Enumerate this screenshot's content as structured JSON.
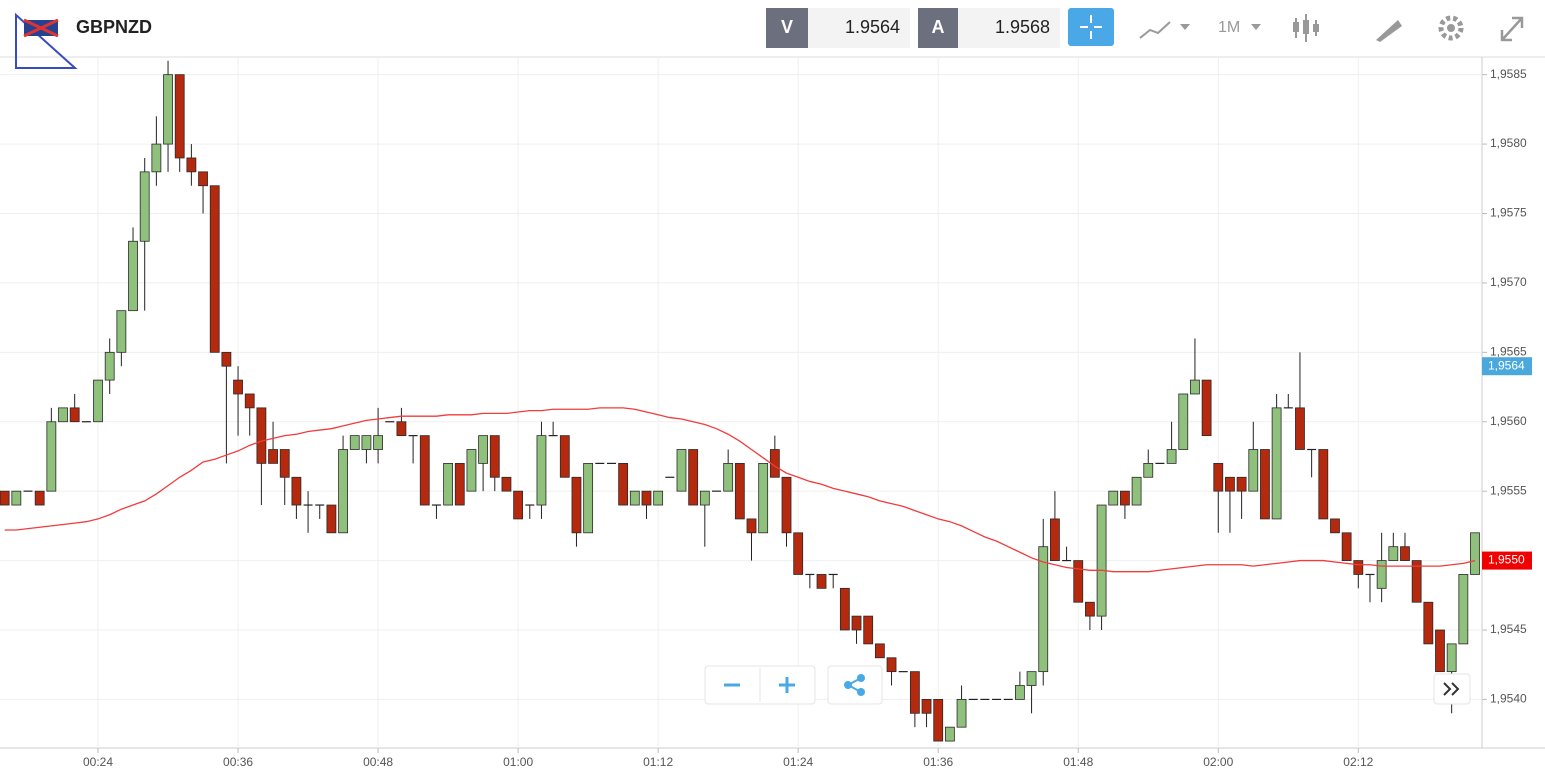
{
  "header": {
    "symbol": "GBPNZD",
    "bid_label": "V",
    "bid": "1.9564",
    "ask_label": "A",
    "ask": "1.9568",
    "timeframe": "1M"
  },
  "chart_data": {
    "type": "candlestick",
    "up_color": "#8fc17d",
    "down_color": "#b5290e",
    "wick_color": "#222222",
    "grid": true,
    "xlim": [
      15.6,
      142.6
    ],
    "ylim": [
      1.95365,
      1.95862
    ],
    "xticks": [
      {
        "value": 24,
        "label": "00:24"
      },
      {
        "value": 36,
        "label": "00:36"
      },
      {
        "value": 48,
        "label": "00:48"
      },
      {
        "value": 60,
        "label": "01:00"
      },
      {
        "value": 72,
        "label": "01:12"
      },
      {
        "value": 84,
        "label": "01:24"
      },
      {
        "value": 96,
        "label": "01:36"
      },
      {
        "value": 108,
        "label": "01:48"
      },
      {
        "value": 120,
        "label": "02:00"
      },
      {
        "value": 132,
        "label": "02:12"
      }
    ],
    "yticks": [
      {
        "value": 1.954,
        "label": "1,9540"
      },
      {
        "value": 1.9545,
        "label": "1,9545"
      },
      {
        "value": 1.955,
        "label": "1,9550"
      },
      {
        "value": 1.9555,
        "label": "1,9555"
      },
      {
        "value": 1.956,
        "label": "1,9560"
      },
      {
        "value": 1.9565,
        "label": "1,9565"
      },
      {
        "value": 1.957,
        "label": "1,9570"
      },
      {
        "value": 1.9575,
        "label": "1,9575"
      },
      {
        "value": 1.958,
        "label": "1,9580"
      },
      {
        "value": 1.9585,
        "label": "1,9585"
      }
    ],
    "x": [
      16,
      17,
      18,
      19,
      20,
      21,
      22,
      23,
      24,
      25,
      26,
      27,
      28,
      29,
      30,
      31,
      32,
      33,
      34,
      35,
      36,
      37,
      38,
      39,
      40,
      41,
      42,
      43,
      44,
      45,
      46,
      47,
      48,
      49,
      50,
      51,
      52,
      53,
      54,
      55,
      56,
      57,
      58,
      59,
      60,
      61,
      62,
      63,
      64,
      65,
      66,
      67,
      68,
      69,
      70,
      71,
      72,
      73,
      74,
      75,
      76,
      77,
      78,
      79,
      80,
      81,
      82,
      83,
      84,
      85,
      86,
      87,
      88,
      89,
      90,
      91,
      92,
      93,
      94,
      95,
      96,
      97,
      98,
      99,
      100,
      101,
      102,
      103,
      104,
      105,
      106,
      107,
      108,
      109,
      110,
      111,
      112,
      113,
      114,
      115,
      116,
      117,
      118,
      119,
      120,
      121,
      122,
      123,
      124,
      125,
      126,
      127,
      128,
      129,
      130,
      131,
      132,
      133,
      134,
      135,
      136,
      137,
      138,
      139,
      140,
      141,
      142
    ],
    "open": [
      1.9555,
      1.9554,
      1.9555,
      1.9555,
      1.9555,
      1.956,
      1.9561,
      1.956,
      1.956,
      1.9563,
      1.9565,
      1.9568,
      1.9573,
      1.9578,
      1.958,
      1.9585,
      1.9579,
      1.9578,
      1.9577,
      1.9565,
      1.9563,
      1.9562,
      1.9561,
      1.9558,
      1.9558,
      1.9556,
      1.9554,
      1.9554,
      1.9554,
      1.9552,
      1.9558,
      1.9558,
      1.9558,
      1.956,
      1.956,
      1.9559,
      1.9559,
      1.9554,
      1.9554,
      1.9557,
      1.9555,
      1.9557,
      1.9559,
      1.9556,
      1.9555,
      1.9554,
      1.9554,
      1.9559,
      1.9559,
      1.9556,
      1.9552,
      1.9557,
      1.9557,
      1.9557,
      1.9554,
      1.9555,
      1.9554,
      1.9556,
      1.9555,
      1.9558,
      1.9554,
      1.9555,
      1.9555,
      1.9557,
      1.9553,
      1.9552,
      1.9558,
      1.9556,
      1.9552,
      1.9549,
      1.9549,
      1.9549,
      1.9548,
      1.9546,
      1.9546,
      1.9544,
      1.9543,
      1.9542,
      1.9542,
      1.954,
      1.954,
      1.9537,
      1.9538,
      1.954,
      1.954,
      1.954,
      1.954,
      1.954,
      1.9541,
      1.9542,
      1.9553,
      1.955,
      1.955,
      1.9547,
      1.9546,
      1.9554,
      1.9555,
      1.9554,
      1.9556,
      1.9557,
      1.9557,
      1.9558,
      1.9562,
      1.9563,
      1.9557,
      1.9556,
      1.9556,
      1.9555,
      1.9558,
      1.9553,
      1.9561,
      1.9561,
      1.9558,
      1.9558,
      1.9553,
      1.9552,
      1.955,
      1.9549,
      1.9548,
      1.955,
      1.9551,
      1.955,
      1.9547,
      1.9545,
      1.9542,
      1.9544,
      1.9549
    ],
    "high": [
      1.9555,
      1.9555,
      1.9555,
      1.9555,
      1.9561,
      1.9561,
      1.9562,
      1.956,
      1.9563,
      1.9566,
      1.9568,
      1.9574,
      1.9579,
      1.9582,
      1.9586,
      1.9585,
      1.958,
      1.9578,
      1.9577,
      1.9565,
      1.9564,
      1.9562,
      1.9561,
      1.956,
      1.9558,
      1.9556,
      1.9555,
      1.9554,
      1.9554,
      1.9559,
      1.9559,
      1.9559,
      1.9561,
      1.956,
      1.9561,
      1.9559,
      1.9559,
      1.9554,
      1.9557,
      1.9557,
      1.9558,
      1.9559,
      1.9559,
      1.9556,
      1.9555,
      1.9554,
      1.956,
      1.956,
      1.9559,
      1.9556,
      1.9557,
      1.9557,
      1.9557,
      1.9557,
      1.9555,
      1.9555,
      1.9555,
      1.9556,
      1.9558,
      1.9558,
      1.9555,
      1.9555,
      1.9558,
      1.9557,
      1.9553,
      1.9557,
      1.9559,
      1.9556,
      1.9552,
      1.9549,
      1.9549,
      1.9549,
      1.9548,
      1.9546,
      1.9546,
      1.9544,
      1.9543,
      1.9542,
      1.9542,
      1.954,
      1.954,
      1.9538,
      1.9541,
      1.954,
      1.954,
      1.954,
      1.954,
      1.9542,
      1.9542,
      1.9553,
      1.9555,
      1.9551,
      1.955,
      1.9547,
      1.9554,
      1.9555,
      1.9555,
      1.9556,
      1.9558,
      1.9557,
      1.956,
      1.9562,
      1.9566,
      1.9563,
      1.9557,
      1.9556,
      1.9556,
      1.956,
      1.9558,
      1.9562,
      1.9562,
      1.9565,
      1.9558,
      1.9558,
      1.9553,
      1.9552,
      1.955,
      1.9549,
      1.9552,
      1.9552,
      1.9552,
      1.955,
      1.9547,
      1.9545,
      1.9544,
      1.9549,
      1.9552
    ],
    "low": [
      1.9554,
      1.9554,
      1.9555,
      1.9554,
      1.9555,
      1.956,
      1.956,
      1.956,
      1.956,
      1.9562,
      1.9564,
      1.9568,
      1.9568,
      1.9577,
      1.9578,
      1.9578,
      1.9577,
      1.9575,
      1.9565,
      1.9557,
      1.9559,
      1.9559,
      1.9554,
      1.9557,
      1.9554,
      1.9553,
      1.9552,
      1.9553,
      1.9552,
      1.9552,
      1.9558,
      1.9557,
      1.9557,
      1.956,
      1.9559,
      1.9557,
      1.9554,
      1.9553,
      1.9554,
      1.9554,
      1.9555,
      1.9555,
      1.9555,
      1.9555,
      1.9553,
      1.9553,
      1.9553,
      1.9559,
      1.9556,
      1.9551,
      1.9552,
      1.9557,
      1.9557,
      1.9554,
      1.9554,
      1.9553,
      1.9554,
      1.9556,
      1.9555,
      1.9554,
      1.9551,
      1.9555,
      1.9555,
      1.9553,
      1.955,
      1.9552,
      1.9556,
      1.9551,
      1.9549,
      1.9548,
      1.9548,
      1.9548,
      1.9545,
      1.9544,
      1.9544,
      1.9543,
      1.9541,
      1.9542,
      1.9538,
      1.9538,
      1.9537,
      1.9537,
      1.9538,
      1.954,
      1.954,
      1.954,
      1.954,
      1.954,
      1.9539,
      1.9541,
      1.955,
      1.955,
      1.9547,
      1.9545,
      1.9545,
      1.9554,
      1.9553,
      1.9554,
      1.9556,
      1.9557,
      1.9557,
      1.9558,
      1.9562,
      1.9559,
      1.9552,
      1.9552,
      1.9553,
      1.9555,
      1.9553,
      1.9553,
      1.9561,
      1.9558,
      1.9556,
      1.9553,
      1.9552,
      1.955,
      1.9548,
      1.9547,
      1.9547,
      1.955,
      1.955,
      1.9547,
      1.9544,
      1.9542,
      1.9539,
      1.9544,
      1.9549
    ],
    "close": [
      1.9554,
      1.9555,
      1.9555,
      1.9554,
      1.956,
      1.9561,
      1.956,
      1.956,
      1.9563,
      1.9565,
      1.9568,
      1.9573,
      1.9578,
      1.958,
      1.9585,
      1.9579,
      1.9578,
      1.9577,
      1.9565,
      1.9564,
      1.9562,
      1.9561,
      1.9557,
      1.9557,
      1.9556,
      1.9554,
      1.9554,
      1.9554,
      1.9552,
      1.9558,
      1.9559,
      1.9559,
      1.9559,
      1.956,
      1.9559,
      1.9559,
      1.9554,
      1.9554,
      1.9557,
      1.9554,
      1.9558,
      1.9559,
      1.9556,
      1.9555,
      1.9553,
      1.9554,
      1.9559,
      1.9559,
      1.9556,
      1.9552,
      1.9557,
      1.9557,
      1.9557,
      1.9554,
      1.9555,
      1.9554,
      1.9555,
      1.9556,
      1.9558,
      1.9554,
      1.9555,
      1.9555,
      1.9557,
      1.9553,
      1.9552,
      1.9557,
      1.9556,
      1.9552,
      1.9549,
      1.9549,
      1.9548,
      1.9549,
      1.9545,
      1.9545,
      1.9544,
      1.9543,
      1.9542,
      1.9542,
      1.9539,
      1.9539,
      1.9537,
      1.9538,
      1.954,
      1.954,
      1.954,
      1.954,
      1.954,
      1.9541,
      1.9542,
      1.9551,
      1.955,
      1.955,
      1.9547,
      1.9546,
      1.9554,
      1.9555,
      1.9554,
      1.9556,
      1.9557,
      1.9557,
      1.9558,
      1.9562,
      1.9563,
      1.9559,
      1.9555,
      1.9555,
      1.9555,
      1.9558,
      1.9553,
      1.9561,
      1.9561,
      1.9558,
      1.9558,
      1.9553,
      1.9552,
      1.955,
      1.9549,
      1.9549,
      1.955,
      1.9551,
      1.955,
      1.9547,
      1.9544,
      1.9542,
      1.9544,
      1.9549,
      1.9552
    ],
    "ma": {
      "color": "#f03c3c",
      "values": [
        1.95522,
        1.95522,
        1.95523,
        1.95524,
        1.95525,
        1.95526,
        1.95527,
        1.95528,
        1.9553,
        1.95533,
        1.95537,
        1.9554,
        1.95543,
        1.95548,
        1.95554,
        1.9556,
        1.95565,
        1.95571,
        1.95573,
        1.95576,
        1.95579,
        1.95583,
        1.95586,
        1.95588,
        1.9559,
        1.95591,
        1.95593,
        1.95594,
        1.95595,
        1.95597,
        1.95599,
        1.95601,
        1.95602,
        1.95603,
        1.95604,
        1.95604,
        1.95604,
        1.95604,
        1.95605,
        1.95605,
        1.95605,
        1.95606,
        1.95606,
        1.95606,
        1.95607,
        1.95608,
        1.95608,
        1.95609,
        1.95609,
        1.95609,
        1.95609,
        1.9561,
        1.9561,
        1.9561,
        1.95609,
        1.95607,
        1.95605,
        1.95603,
        1.95602,
        1.956,
        1.95598,
        1.95595,
        1.95591,
        1.95586,
        1.9558,
        1.95574,
        1.95568,
        1.95563,
        1.9556,
        1.95557,
        1.95555,
        1.95552,
        1.9555,
        1.95548,
        1.95546,
        1.95543,
        1.95541,
        1.95539,
        1.95536,
        1.95533,
        1.9553,
        1.95528,
        1.95525,
        1.95521,
        1.95517,
        1.95514,
        1.9551,
        1.95506,
        1.95502,
        1.95499,
        1.95497,
        1.95495,
        1.95494,
        1.95493,
        1.95493,
        1.95492,
        1.95492,
        1.95492,
        1.95492,
        1.95493,
        1.95494,
        1.95495,
        1.95496,
        1.95497,
        1.95497,
        1.95497,
        1.95497,
        1.95496,
        1.95497,
        1.95498,
        1.95499,
        1.955,
        1.955,
        1.955,
        1.95499,
        1.95498,
        1.95497,
        1.95497,
        1.95496,
        1.95496,
        1.95496,
        1.95496,
        1.95496,
        1.95496,
        1.95497,
        1.95498,
        1.955
      ]
    },
    "price_tags": [
      {
        "value": 1.9564,
        "label": "1,9564",
        "color": "#4aa8dc"
      },
      {
        "value": 1.955,
        "label": "1,9550",
        "color": "#f00000"
      }
    ]
  }
}
